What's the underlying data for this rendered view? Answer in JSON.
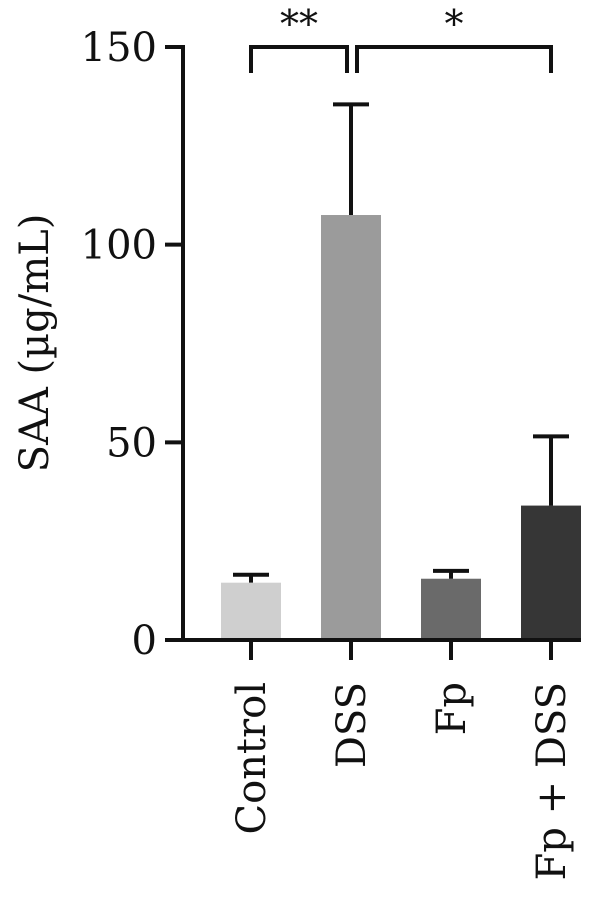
{
  "chart_data": {
    "type": "bar",
    "ylabel": "SAA (µg/mL)",
    "xlabel": "",
    "ylim": [
      0,
      150
    ],
    "yticks": [
      0,
      50,
      100,
      150
    ],
    "categories": [
      "Control",
      "DSS",
      "Fp",
      "Fp + DSS"
    ],
    "values": [
      14.5,
      107.5,
      15.5,
      34
    ],
    "errors": [
      2,
      28,
      2,
      17.5
    ],
    "colors": [
      "#cfcfcf",
      "#9b9b9b",
      "#6a6a6a",
      "#363636"
    ],
    "significance": [
      {
        "from": 0,
        "to": 1,
        "label": "**"
      },
      {
        "from": 1,
        "to": 3,
        "label": "*"
      }
    ],
    "grid": false,
    "legend": "none"
  }
}
